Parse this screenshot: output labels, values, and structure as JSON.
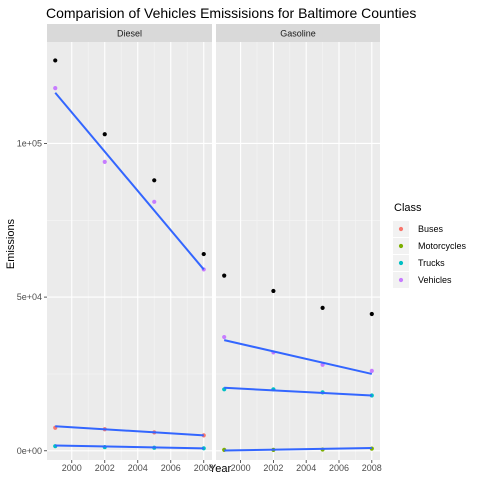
{
  "chart_data": {
    "type": "scatter",
    "title": "Comparision of Vehicles Emissisions for  Baltimore Counties",
    "xlabel": "Year",
    "ylabel": "Emissions",
    "xlim": [
      1998.5,
      2008.5
    ],
    "ylim": [
      -3000,
      133000
    ],
    "x_ticks": [
      2000,
      2002,
      2004,
      2006,
      2008
    ],
    "x_tick_labels": [
      "2000",
      "2002",
      "2004",
      "2006",
      "2008"
    ],
    "y_ticks": [
      0,
      50000,
      100000
    ],
    "y_tick_labels": [
      "0e+00",
      "5e+04",
      "1e+05"
    ],
    "grid": true,
    "legend": {
      "title": "Class",
      "placement": "right",
      "items": [
        {
          "label": "Buses",
          "color": "#F8766D"
        },
        {
          "label": "Motorcycles",
          "color": "#7CAE00"
        },
        {
          "label": "Trucks",
          "color": "#00BFC4"
        },
        {
          "label": "Vehicles",
          "color": "#C77CFF"
        }
      ]
    },
    "fit_line_color": "#3366FF",
    "total_point_color": "#000000",
    "facets": [
      {
        "label": "Diesel",
        "total_points": {
          "x": [
            1999,
            2002,
            2005,
            2008
          ],
          "y": [
            127000,
            103000,
            88000,
            64000
          ]
        },
        "series": [
          {
            "name": "Buses",
            "x": [
              1999,
              2002,
              2005,
              2008
            ],
            "y": [
              7500,
              7000,
              6000,
              5000
            ]
          },
          {
            "name": "Motorcycles",
            "x": [],
            "y": []
          },
          {
            "name": "Trucks",
            "x": [
              1999,
              2002,
              2005,
              2008
            ],
            "y": [
              1500,
              1200,
              1000,
              800
            ]
          },
          {
            "name": "Vehicles",
            "x": [
              1999,
              2002,
              2005,
              2008
            ],
            "y": [
              118000,
              94000,
              81000,
              59000
            ]
          }
        ],
        "fits": [
          {
            "name": "Vehicles",
            "x": [
              1999,
              2008
            ],
            "y": [
              116500,
              59000
            ]
          },
          {
            "name": "Buses",
            "x": [
              1999,
              2008
            ],
            "y": [
              8000,
              5000
            ]
          },
          {
            "name": "Trucks",
            "x": [
              1999,
              2008
            ],
            "y": [
              1700,
              800
            ]
          }
        ]
      },
      {
        "label": "Gasoline",
        "total_points": {
          "x": [
            1999,
            2002,
            2005,
            2008
          ],
          "y": [
            57000,
            52000,
            46500,
            44500
          ]
        },
        "series": [
          {
            "name": "Buses",
            "x": [],
            "y": []
          },
          {
            "name": "Motorcycles",
            "x": [
              1999,
              2002,
              2005,
              2008
            ],
            "y": [
              300,
              300,
              400,
              700
            ]
          },
          {
            "name": "Trucks",
            "x": [
              1999,
              2002,
              2005,
              2008
            ],
            "y": [
              20000,
              20000,
              19000,
              18000
            ]
          },
          {
            "name": "Vehicles",
            "x": [
              1999,
              2002,
              2005,
              2008
            ],
            "y": [
              37000,
              32000,
              28000,
              26000
            ]
          }
        ],
        "fits": [
          {
            "name": "Vehicles",
            "x": [
              1999,
              2008
            ],
            "y": [
              36000,
              25000
            ]
          },
          {
            "name": "Trucks",
            "x": [
              1999,
              2008
            ],
            "y": [
              20500,
              18000
            ]
          },
          {
            "name": "Motorcycles",
            "x": [
              1999,
              2008
            ],
            "y": [
              100,
              900
            ]
          }
        ]
      }
    ]
  }
}
